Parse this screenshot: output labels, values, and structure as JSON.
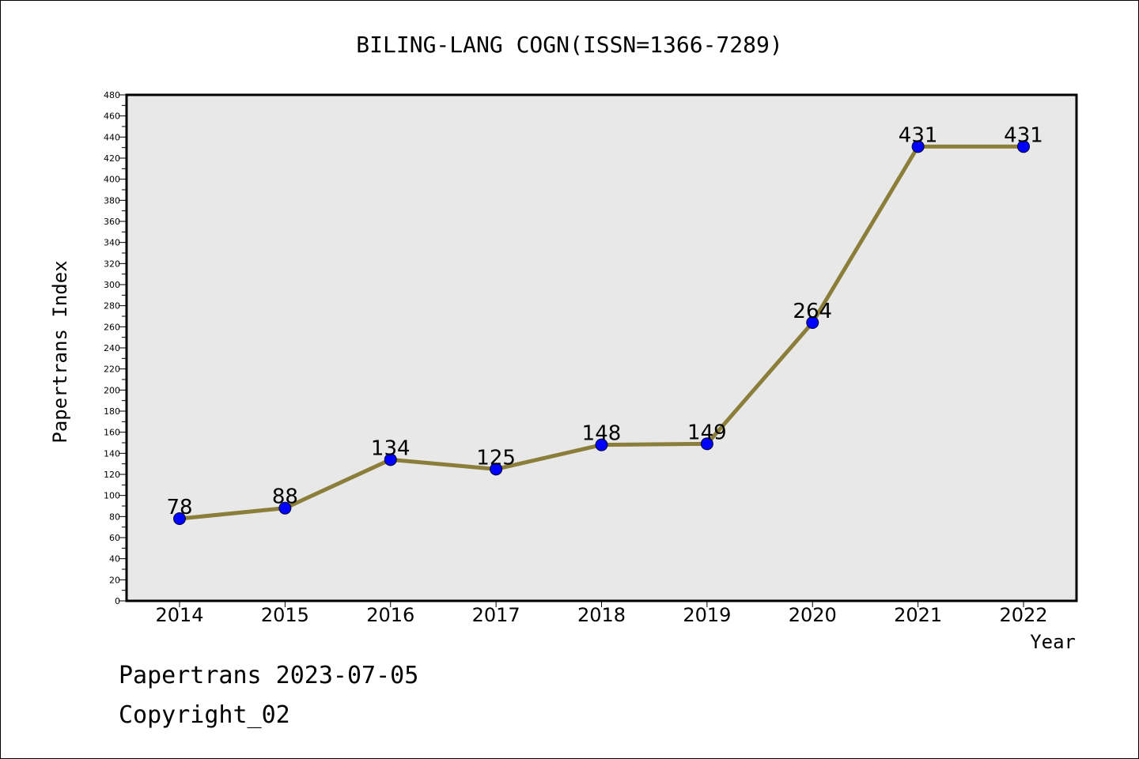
{
  "chart_data": {
    "type": "line",
    "title": "BILING-LANG COGN(ISSN=1366-7289)",
    "xlabel": "Year",
    "ylabel": "Papertrans Index",
    "x": [
      "2014",
      "2015",
      "2016",
      "2017",
      "2018",
      "2019",
      "2020",
      "2021",
      "2022"
    ],
    "series": [
      {
        "values": [
          78,
          88,
          134,
          125,
          148,
          149,
          264,
          431,
          431
        ]
      }
    ],
    "data_labels": [
      "78",
      "88",
      "134",
      "125",
      "148",
      "149",
      "264",
      "431",
      "431"
    ],
    "ylim": [
      0,
      480
    ],
    "ytick_step": 20,
    "grid": false,
    "colors": {
      "line": "#8b7d3a",
      "marker": "#0000ff",
      "plot_bg": "#e8e8e8"
    }
  },
  "footer": {
    "line1": "Papertrans 2023-07-05",
    "line2": "Copyright_02"
  }
}
